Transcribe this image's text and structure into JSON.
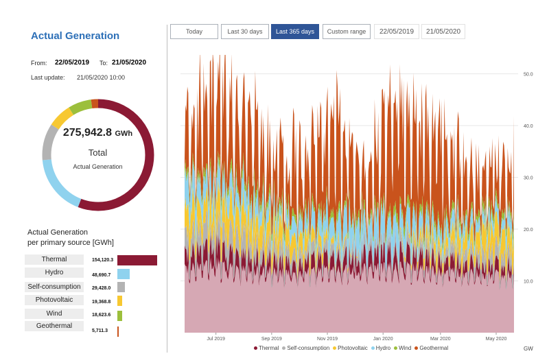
{
  "header": {
    "title": "Actual Generation",
    "from_label": "From:",
    "from_value": "22/05/2019",
    "to_label": "To:",
    "to_value": "21/05/2020",
    "update_label": "Last  update:",
    "update_value": "21/05/2020 10:00"
  },
  "toolbar": {
    "buttons": [
      "Today",
      "Last 30 days",
      "Last 365 days",
      "Custom range"
    ],
    "active": "Last 365 days",
    "date_from": "22/05/2019",
    "date_to": "21/05/2020"
  },
  "donut": {
    "total": "275,942.8",
    "unit": "GWh",
    "label1": "Total",
    "label2": "Actual Generation"
  },
  "sources": {
    "title_line1": "Actual Generation",
    "title_line2": "per primary source [GWh]",
    "items": [
      {
        "name": "Thermal",
        "value": "154,120.3",
        "num": 154120.3,
        "color": "#8b1a34"
      },
      {
        "name": "Hydro",
        "value": "48,690.7",
        "num": 48690.7,
        "color": "#8fd2ee"
      },
      {
        "name": "Self-consumption",
        "value": "29,428.0",
        "num": 29428.0,
        "color": "#b3b3b3"
      },
      {
        "name": "Photovoltaic",
        "value": "19,368.8",
        "num": 19368.8,
        "color": "#f7c831"
      },
      {
        "name": "Wind",
        "value": "18,623.6",
        "num": 18623.6,
        "color": "#9cbf3c"
      },
      {
        "name": "Geothermal",
        "value": "5,711.3",
        "num": 5711.3,
        "color": "#c9531c"
      }
    ]
  },
  "chart_data": {
    "type": "area",
    "stacked": true,
    "x_ticks": [
      "Jul 2019",
      "Sep 2019",
      "Nov 2019",
      "Jan 2020",
      "Mar 2020",
      "May 2020"
    ],
    "y_ticks": [
      "10.0",
      "20.0",
      "30.0",
      "40.0",
      "50.0"
    ],
    "ylim": [
      0,
      53
    ],
    "unit_label": "GW",
    "grid": "horizontal",
    "legend_position": "bottom",
    "series": [
      {
        "name": "Thermal",
        "color": "#8b1a34"
      },
      {
        "name": "Self-consumption",
        "color": "#b3b3b3"
      },
      {
        "name": "Photovoltaic",
        "color": "#f7c831"
      },
      {
        "name": "Hydro",
        "color": "#8fd2ee"
      },
      {
        "name": "Wind",
        "color": "#9cbf3c"
      },
      {
        "name": "Geothermal",
        "color": "#c9531c"
      }
    ],
    "monthly_approx": {
      "months": [
        "Jun 2019",
        "Jul 2019",
        "Aug 2019",
        "Sep 2019",
        "Oct 2019",
        "Nov 2019",
        "Dec 2019",
        "Jan 2020",
        "Feb 2020",
        "Mar 2020",
        "Apr 2020",
        "May 2020"
      ],
      "thermal_top": [
        15,
        17,
        15,
        14,
        14,
        15,
        15,
        16,
        15,
        14,
        13,
        13
      ],
      "self_consumption_top": [
        19,
        21,
        19,
        17,
        16,
        17,
        17,
        18,
        17,
        16,
        16,
        16
      ],
      "photovoltaic_top": [
        24,
        26,
        24,
        21,
        19,
        18,
        17,
        18,
        19,
        19,
        20,
        21
      ],
      "hydro_top": [
        29,
        30,
        28,
        24,
        22,
        23,
        22,
        23,
        22,
        22,
        22,
        24
      ],
      "total_peak": [
        44,
        50,
        47,
        38,
        40,
        44,
        36,
        46,
        44,
        38,
        33,
        36
      ]
    }
  }
}
